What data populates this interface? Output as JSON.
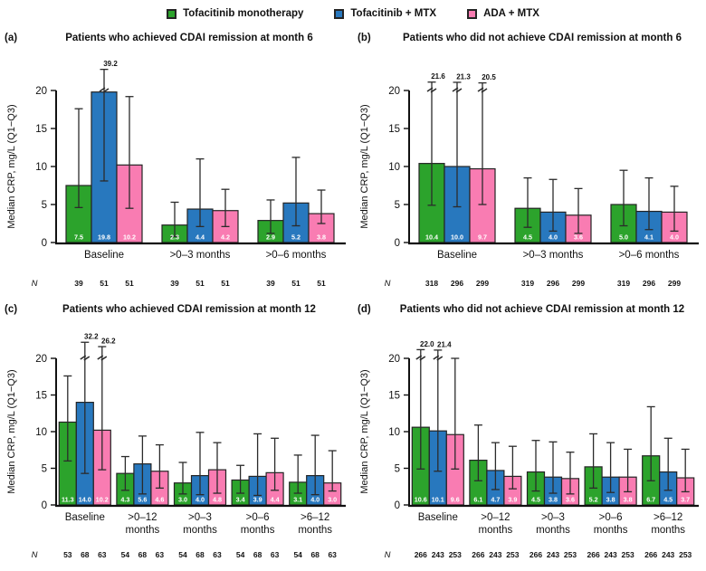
{
  "legend": {
    "items": [
      {
        "label": "Tofacitinib monotherapy",
        "color": "#2CA32C"
      },
      {
        "label": "Tofacitinib + MTX",
        "color": "#2878BE"
      },
      {
        "label": "ADA + MTX",
        "color": "#F97CB2"
      }
    ]
  },
  "ylabel": "Median CRP, mg/L (Q1−Q3)",
  "n_row_label": "N",
  "series_names": [
    "Tofacitinib monotherapy",
    "Tofacitinib + MTX",
    "ADA + MTX"
  ],
  "colors": {
    "green": "#2CA32C",
    "blue": "#2878BE",
    "pink": "#F97CB2",
    "stroke": "#242424",
    "error": "#2b2b2b"
  },
  "chart_data": [
    {
      "type": "bar",
      "panel": "(a)",
      "title": "Patients who achieved CDAI remission at month 6",
      "ylim": [
        0,
        20
      ],
      "yticks": [
        0,
        5,
        10,
        15,
        20
      ],
      "groups": [
        {
          "label": "Baseline",
          "n": [
            "39",
            "51",
            "51"
          ],
          "bars": [
            {
              "median": 7.5,
              "q1": 4.6,
              "q3": 17.6
            },
            {
              "median": 19.8,
              "q1": 8.1,
              "q3": 39.2,
              "broken": true
            },
            {
              "median": 10.2,
              "q1": 4.5,
              "q3": 19.2
            }
          ]
        },
        {
          "label": ">0–3 months",
          "n": [
            "39",
            "51",
            "51"
          ],
          "bars": [
            {
              "median": 2.3,
              "q1": 0.8,
              "q3": 5.3
            },
            {
              "median": 4.4,
              "q1": 2.1,
              "q3": 11.0
            },
            {
              "median": 4.2,
              "q1": 2.1,
              "q3": 7.0
            }
          ]
        },
        {
          "label": ">0–6 months",
          "n": [
            "39",
            "51",
            "51"
          ],
          "bars": [
            {
              "median": 2.9,
              "q1": 1.2,
              "q3": 5.6
            },
            {
              "median": 5.2,
              "q1": 2.2,
              "q3": 11.2
            },
            {
              "median": 3.8,
              "q1": 2.5,
              "q3": 6.9
            }
          ]
        }
      ]
    },
    {
      "type": "bar",
      "panel": "(b)",
      "title": "Patients who did not achieve CDAI remission at month 6",
      "ylim": [
        0,
        20
      ],
      "yticks": [
        0,
        5,
        10,
        15,
        20
      ],
      "groups": [
        {
          "label": "Baseline",
          "n": [
            "318",
            "296",
            "299"
          ],
          "bars": [
            {
              "median": 10.4,
              "q1": 4.9,
              "q3": 21.6,
              "broken": true
            },
            {
              "median": 10.0,
              "q1": 4.7,
              "q3": 21.3,
              "broken": true
            },
            {
              "median": 9.7,
              "q1": 5.0,
              "q3": 20.5,
              "broken": true
            }
          ]
        },
        {
          "label": ">0–3 months",
          "n": [
            "319",
            "296",
            "299"
          ],
          "bars": [
            {
              "median": 4.5,
              "q1": 2.0,
              "q3": 8.5
            },
            {
              "median": 4.0,
              "q1": 1.5,
              "q3": 8.3
            },
            {
              "median": 3.6,
              "q1": 1.2,
              "q3": 7.1
            }
          ]
        },
        {
          "label": ">0–6 months",
          "n": [
            "319",
            "296",
            "299"
          ],
          "bars": [
            {
              "median": 5.0,
              "q1": 2.2,
              "q3": 9.5
            },
            {
              "median": 4.1,
              "q1": 1.7,
              "q3": 8.5
            },
            {
              "median": 4.0,
              "q1": 1.5,
              "q3": 7.4
            }
          ]
        }
      ]
    },
    {
      "type": "bar",
      "panel": "(c)",
      "title": "Patients who achieved CDAI remission at month 12",
      "ylim": [
        0,
        20
      ],
      "yticks": [
        0,
        5,
        10,
        15,
        20
      ],
      "groups": [
        {
          "label": "Baseline",
          "n": [
            "53",
            "68",
            "63"
          ],
          "bars": [
            {
              "median": 11.3,
              "q1": 6.0,
              "q3": 17.6
            },
            {
              "median": 14.0,
              "q1": 4.3,
              "q3": 32.2,
              "broken": true
            },
            {
              "median": 10.2,
              "q1": 4.8,
              "q3": 26.2,
              "broken": true
            }
          ]
        },
        {
          "label": ">0–12 months",
          "n": [
            "54",
            "68",
            "63"
          ],
          "bars": [
            {
              "median": 4.3,
              "q1": 2.0,
              "q3": 6.6
            },
            {
              "median": 5.6,
              "q1": 1.5,
              "q3": 9.4
            },
            {
              "median": 4.6,
              "q1": 2.3,
              "q3": 8.2
            }
          ]
        },
        {
          "label": ">0–3 months",
          "n": [
            "54",
            "68",
            "63"
          ],
          "bars": [
            {
              "median": 3.0,
              "q1": 1.5,
              "q3": 5.8
            },
            {
              "median": 4.0,
              "q1": 1.4,
              "q3": 9.9
            },
            {
              "median": 4.8,
              "q1": 1.6,
              "q3": 8.5
            }
          ]
        },
        {
          "label": ">0–6 months",
          "n": [
            "54",
            "68",
            "63"
          ],
          "bars": [
            {
              "median": 3.4,
              "q1": 1.6,
              "q3": 5.4
            },
            {
              "median": 3.9,
              "q1": 1.3,
              "q3": 9.7
            },
            {
              "median": 4.4,
              "q1": 2.0,
              "q3": 9.1
            }
          ]
        },
        {
          "label": ">6–12 months",
          "n": [
            "54",
            "68",
            "63"
          ],
          "bars": [
            {
              "median": 3.1,
              "q1": 1.6,
              "q3": 6.8
            },
            {
              "median": 4.0,
              "q1": 1.4,
              "q3": 9.5
            },
            {
              "median": 3.0,
              "q1": 1.9,
              "q3": 7.4
            }
          ]
        }
      ]
    },
    {
      "type": "bar",
      "panel": "(d)",
      "title": "Patients who did not achieve CDAI remission at month 12",
      "ylim": [
        0,
        20
      ],
      "yticks": [
        0,
        5,
        10,
        15,
        20
      ],
      "groups": [
        {
          "label": "Baseline",
          "n": [
            "266",
            "243",
            "253"
          ],
          "bars": [
            {
              "median": 10.6,
              "q1": 4.9,
              "q3": 22.0,
              "broken": true
            },
            {
              "median": 10.1,
              "q1": 4.6,
              "q3": 21.4,
              "broken": true
            },
            {
              "median": 9.6,
              "q1": 4.9,
              "q3": 20.0
            }
          ]
        },
        {
          "label": ">0–12 months",
          "n": [
            "266",
            "243",
            "253"
          ],
          "bars": [
            {
              "median": 6.1,
              "q1": 3.3,
              "q3": 10.9
            },
            {
              "median": 4.7,
              "q1": 2.1,
              "q3": 8.5
            },
            {
              "median": 3.9,
              "q1": 2.2,
              "q3": 8.0
            }
          ]
        },
        {
          "label": ">0–3 months",
          "n": [
            "266",
            "243",
            "253"
          ],
          "bars": [
            {
              "median": 4.5,
              "q1": 1.9,
              "q3": 8.8
            },
            {
              "median": 3.8,
              "q1": 1.6,
              "q3": 8.6
            },
            {
              "median": 3.6,
              "q1": 1.5,
              "q3": 7.2
            }
          ]
        },
        {
          "label": ">0–6 months",
          "n": [
            "266",
            "243",
            "253"
          ],
          "bars": [
            {
              "median": 5.2,
              "q1": 2.3,
              "q3": 9.7
            },
            {
              "median": 3.8,
              "q1": 1.7,
              "q3": 8.5
            },
            {
              "median": 3.8,
              "q1": 1.8,
              "q3": 7.6
            }
          ]
        },
        {
          "label": ">6–12 months",
          "n": [
            "266",
            "243",
            "253"
          ],
          "bars": [
            {
              "median": 6.7,
              "q1": 3.3,
              "q3": 13.4
            },
            {
              "median": 4.5,
              "q1": 2.0,
              "q3": 9.1
            },
            {
              "median": 3.7,
              "q1": 1.8,
              "q3": 7.6
            }
          ]
        }
      ]
    }
  ]
}
